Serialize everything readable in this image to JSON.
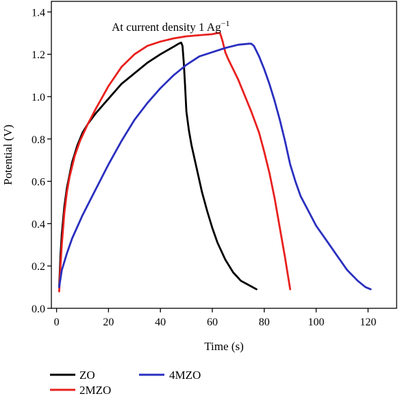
{
  "chart_data": {
    "type": "line",
    "title": "",
    "annotation": {
      "prefix": "At current density 1 Ag",
      "superscript": "−1"
    },
    "xlabel": "Time (s)",
    "ylabel": "Potential (V)",
    "xlim": [
      -2,
      131
    ],
    "ylim": [
      0,
      1.45
    ],
    "xticks": [
      0,
      20,
      40,
      60,
      80,
      100,
      120
    ],
    "yticks": [
      0.0,
      0.2,
      0.4,
      0.6,
      0.8,
      1.0,
      1.2,
      1.4
    ],
    "ytick_labels": [
      "0.0",
      "0.2",
      "0.4",
      "0.6",
      "0.8",
      "1.0",
      "1.2",
      "1.4"
    ],
    "grid": false,
    "legend_position": "bottom",
    "series": [
      {
        "name": "ZO",
        "color": "#000000",
        "x": [
          1,
          1.5,
          2,
          3,
          4,
          6,
          8,
          10,
          12,
          15,
          20,
          25,
          30,
          35,
          40,
          45,
          47,
          48,
          48.5,
          49,
          49.5,
          50,
          51,
          52,
          54,
          56,
          58,
          60,
          62,
          65,
          68,
          71,
          74,
          77
        ],
        "y": [
          0.1,
          0.25,
          0.35,
          0.48,
          0.57,
          0.69,
          0.77,
          0.83,
          0.87,
          0.92,
          0.99,
          1.06,
          1.11,
          1.16,
          1.2,
          1.235,
          1.25,
          1.255,
          1.24,
          1.16,
          1.05,
          0.93,
          0.84,
          0.77,
          0.66,
          0.55,
          0.46,
          0.38,
          0.31,
          0.23,
          0.17,
          0.13,
          0.11,
          0.09
        ]
      },
      {
        "name": "2MZO",
        "color": "#e8201e",
        "x": [
          1,
          1.5,
          2,
          3,
          4,
          5,
          7,
          9,
          12,
          15,
          20,
          25,
          30,
          35,
          40,
          45,
          50,
          55,
          60,
          62,
          63,
          64,
          65,
          66,
          68,
          70,
          72,
          75,
          78,
          80,
          82,
          84,
          86,
          88,
          90
        ],
        "y": [
          0.08,
          0.2,
          0.3,
          0.45,
          0.55,
          0.62,
          0.72,
          0.79,
          0.87,
          0.94,
          1.05,
          1.14,
          1.2,
          1.24,
          1.26,
          1.275,
          1.285,
          1.29,
          1.295,
          1.3,
          1.3,
          1.26,
          1.21,
          1.18,
          1.13,
          1.08,
          1.02,
          0.93,
          0.83,
          0.74,
          0.64,
          0.52,
          0.38,
          0.24,
          0.09
        ]
      },
      {
        "name": "4MZO",
        "color": "#2a2fbf",
        "x": [
          1,
          2,
          4,
          6,
          10,
          15,
          20,
          25,
          30,
          35,
          40,
          45,
          50,
          55,
          60,
          65,
          70,
          74,
          75,
          76,
          78,
          80,
          82,
          84,
          86,
          88,
          90,
          92,
          94,
          97,
          100,
          104,
          108,
          112,
          116,
          119,
          121
        ],
        "y": [
          0.1,
          0.18,
          0.26,
          0.33,
          0.44,
          0.56,
          0.68,
          0.79,
          0.89,
          0.97,
          1.04,
          1.1,
          1.15,
          1.19,
          1.21,
          1.23,
          1.245,
          1.25,
          1.25,
          1.24,
          1.19,
          1.13,
          1.06,
          0.98,
          0.89,
          0.79,
          0.68,
          0.6,
          0.53,
          0.46,
          0.39,
          0.32,
          0.25,
          0.18,
          0.13,
          0.1,
          0.09
        ]
      }
    ]
  }
}
